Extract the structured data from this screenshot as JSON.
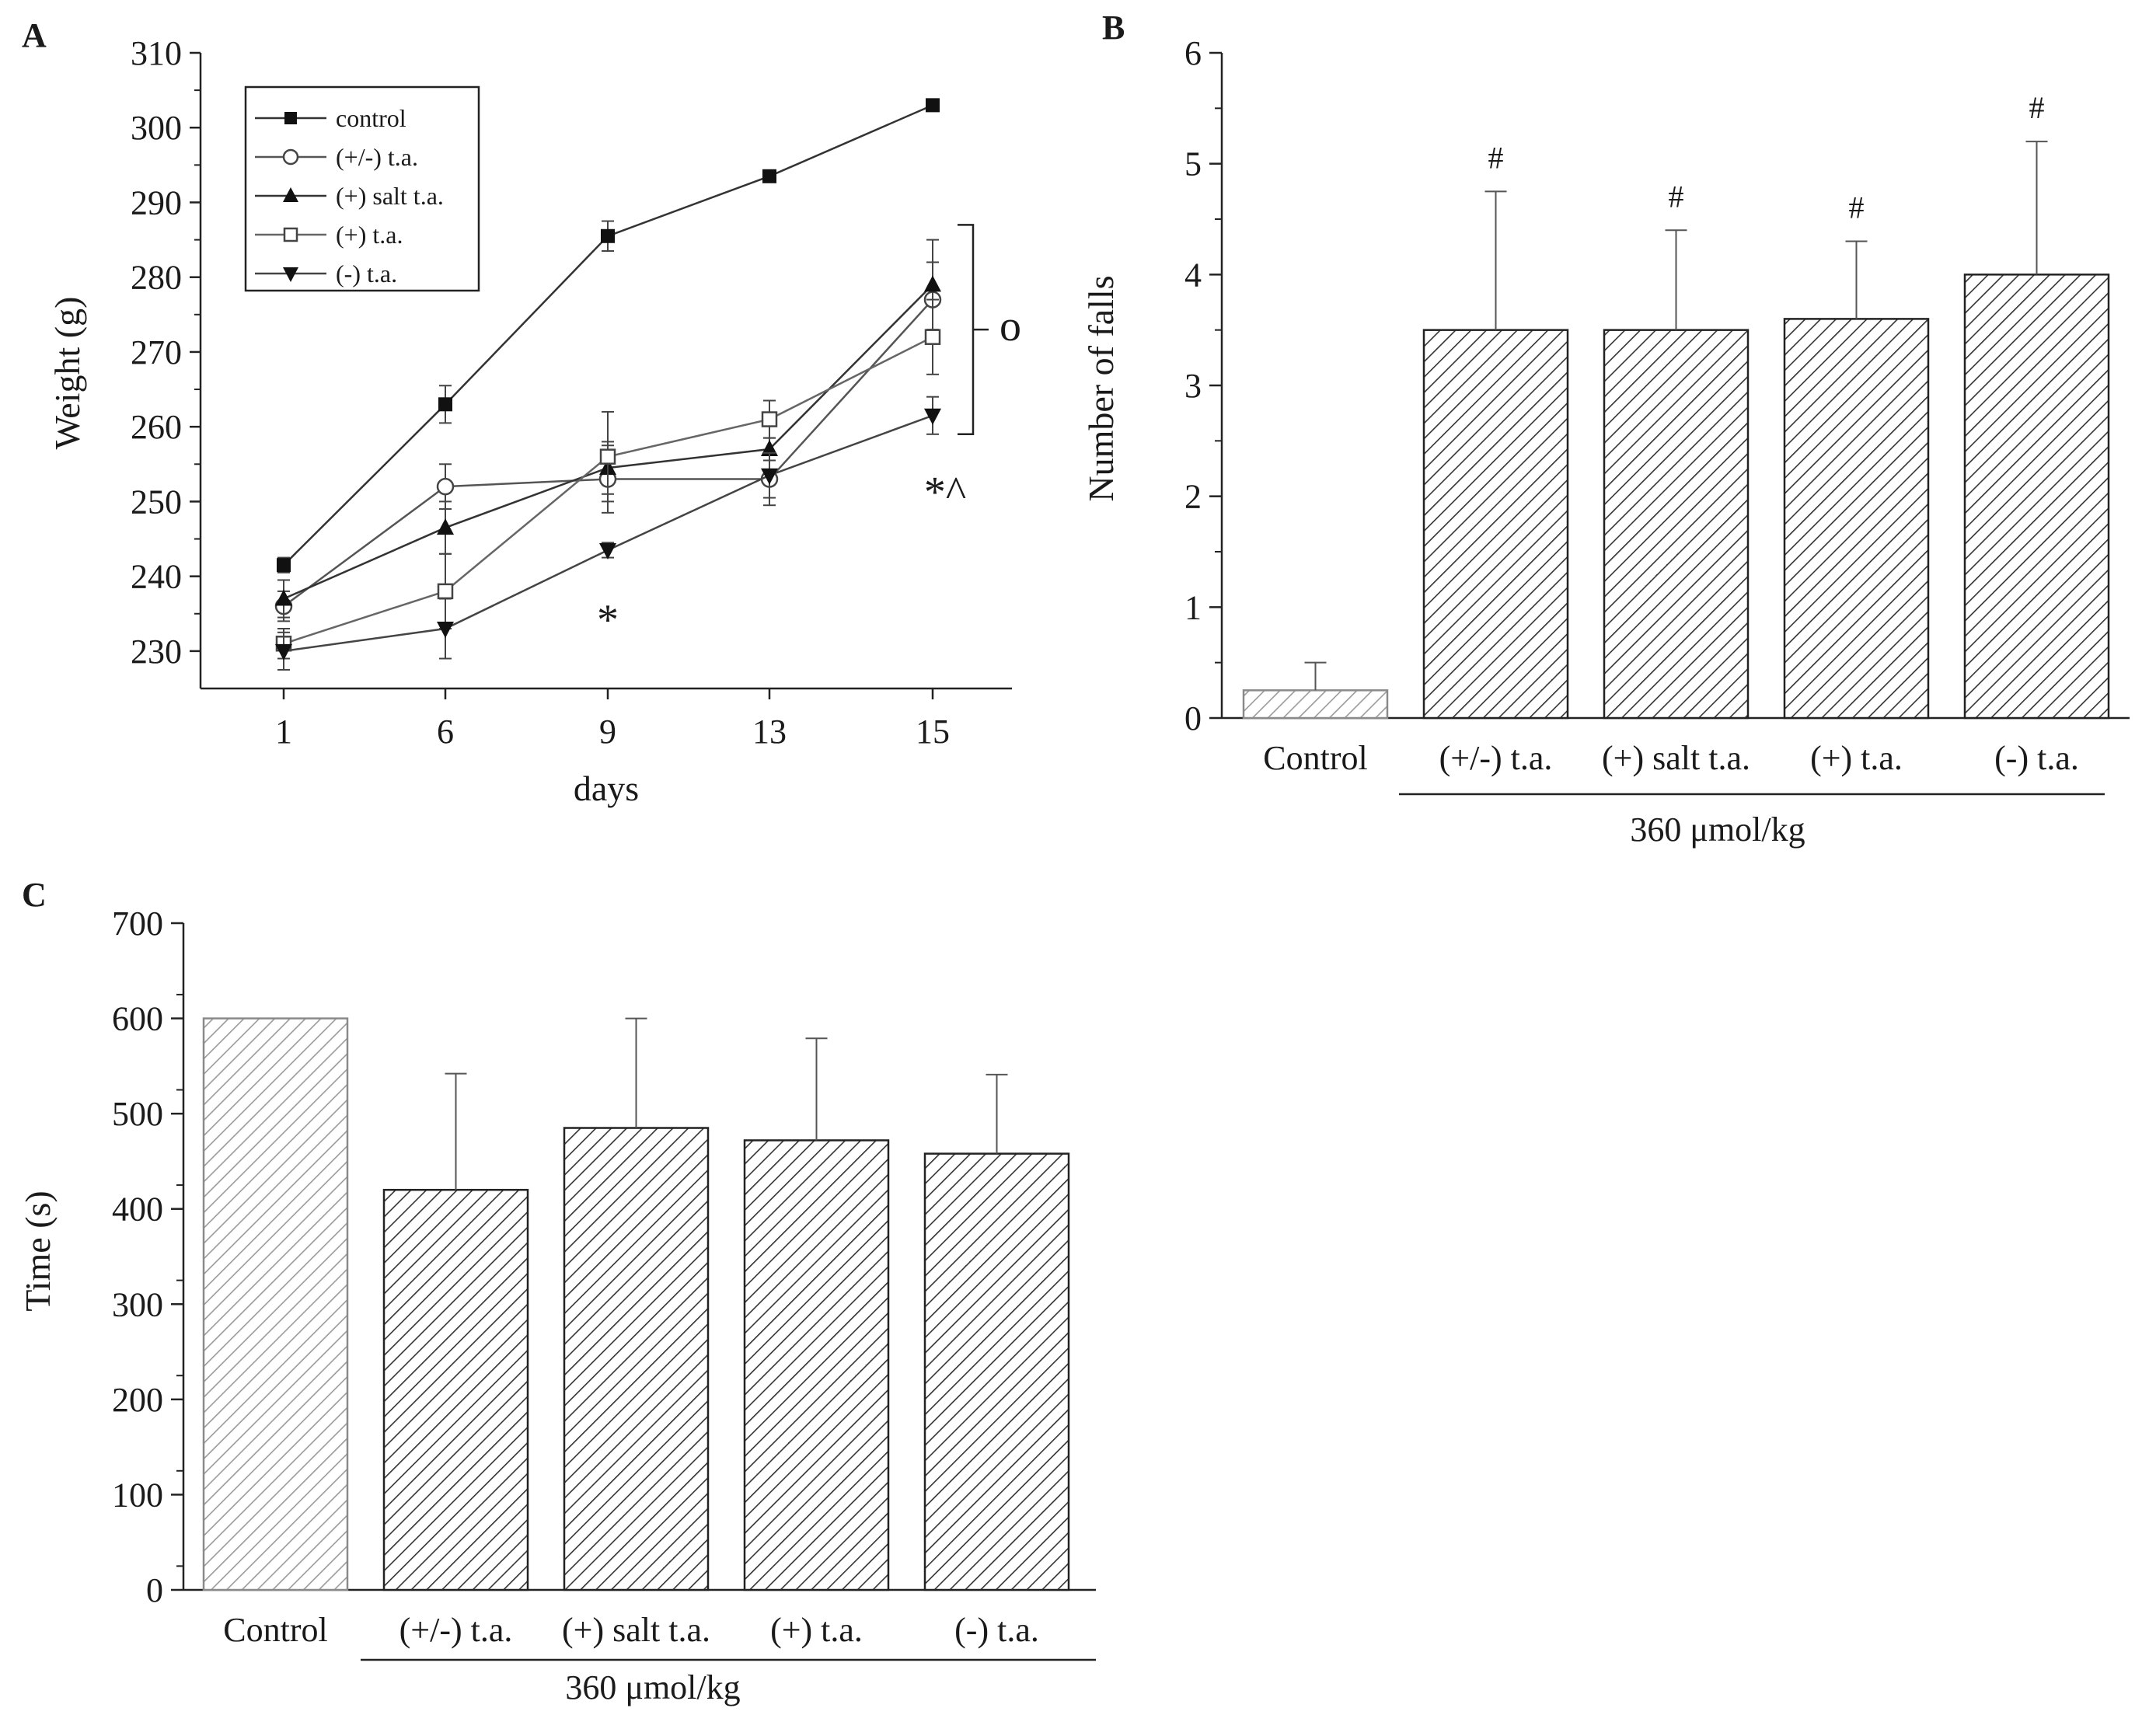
{
  "chart_data": [
    {
      "id": "A",
      "panel_label": "A",
      "type": "line",
      "xlabel": "days",
      "ylabel": "Weight  (g)",
      "categories": [
        1,
        6,
        9,
        13,
        15
      ],
      "ylim": [
        225,
        310
      ],
      "yticks": [
        230,
        240,
        250,
        260,
        270,
        280,
        290,
        300,
        310
      ],
      "series": [
        {
          "name": "control",
          "marker": "square-filled",
          "values": [
            241.5,
            263,
            285.5,
            293.5,
            303
          ],
          "errors": [
            1,
            2.5,
            2,
            0.8,
            0.8
          ]
        },
        {
          "name": "(+/-) t.a.",
          "marker": "circle-open",
          "values": [
            236,
            252,
            253,
            253,
            277
          ],
          "errors": [
            2,
            3,
            4.5,
            3.5,
            5
          ]
        },
        {
          "name": "(+) salt t.a.",
          "marker": "triangle-up-filled",
          "values": [
            237,
            246.5,
            254.5,
            257,
            279
          ],
          "errors": [
            2.5,
            3.5,
            3.5,
            1.5,
            6
          ]
        },
        {
          "name": "(+) t.a.",
          "marker": "square-open",
          "values": [
            231,
            238,
            256,
            261,
            272
          ],
          "errors": [
            2,
            5,
            6,
            2.5,
            5
          ]
        },
        {
          "name": "(-) t.a.",
          "marker": "triangle-down-filled",
          "values": [
            230,
            233,
            243.5,
            253.5,
            261.5
          ],
          "errors": [
            2.5,
            4,
            1,
            3,
            2.5
          ]
        }
      ],
      "annotations": [
        {
          "text": "*",
          "at_day": 9,
          "at_value": 236
        },
        {
          "text": "*^",
          "at_day": 15,
          "at_value": 252.5
        },
        {
          "text": "o",
          "bracket_from": 259,
          "bracket_to": 287
        }
      ]
    },
    {
      "id": "B",
      "panel_label": "B",
      "type": "bar",
      "ylabel": "Number of falls",
      "ylim": [
        0,
        6
      ],
      "yticks": [
        0,
        1,
        2,
        3,
        4,
        5,
        6
      ],
      "categories": [
        "Control",
        "(+/-) t.a.",
        "(+) salt t.a.",
        "(+) t.a.",
        "(-) t.a."
      ],
      "values": [
        0.25,
        3.5,
        3.5,
        3.6,
        4.0
      ],
      "errors": [
        0.25,
        1.25,
        0.9,
        0.7,
        1.2
      ],
      "sig_markers": [
        "",
        "#",
        "#",
        "#",
        "#"
      ],
      "group_label": "360 μmol/kg"
    },
    {
      "id": "C",
      "panel_label": "C",
      "type": "bar",
      "ylabel": "Time (s)",
      "ylim": [
        0,
        700
      ],
      "yticks": [
        0,
        100,
        200,
        300,
        400,
        500,
        600,
        700
      ],
      "categories": [
        "Control",
        "(+/-) t.a.",
        "(+) salt t.a.",
        "(+) t.a.",
        "(-) t.a."
      ],
      "values": [
        600,
        420,
        485,
        472,
        458
      ],
      "errors": [
        0,
        122,
        115,
        107,
        83
      ],
      "sig_markers": [
        "",
        "",
        "",
        "",
        ""
      ],
      "group_label": "360 μmol/kg"
    }
  ]
}
